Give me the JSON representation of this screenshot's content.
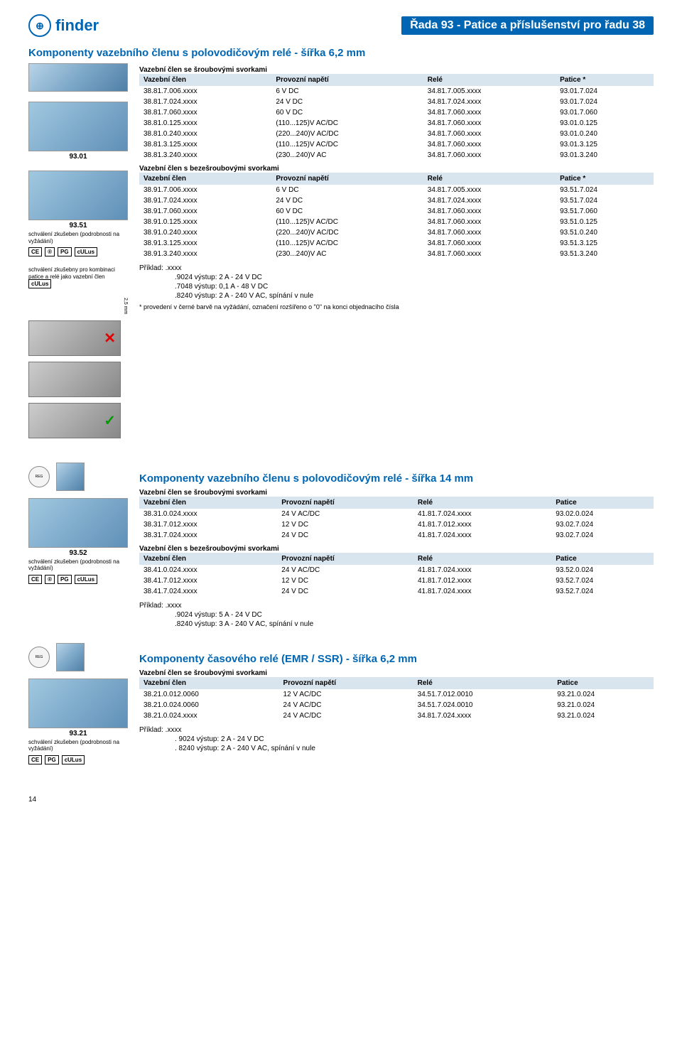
{
  "header": {
    "brand": "finder",
    "page_title": "Řada 93 - Patice a příslušenství pro řadu 38"
  },
  "section1": {
    "title": "Komponenty vazebního členu s polovodičovým relé - šířka 6,2 mm",
    "sub1": "Vazební člen se šroubovými svorkami",
    "cols": [
      "Vazební člen",
      "Provozní napětí",
      "Relé",
      "Patice *"
    ],
    "rows1": [
      [
        "38.81.7.006.xxxx",
        "6 V DC",
        "34.81.7.005.xxxx",
        "93.01.7.024"
      ],
      [
        "38.81.7.024.xxxx",
        "24 V DC",
        "34.81.7.024.xxxx",
        "93.01.7.024"
      ],
      [
        "38.81.7.060.xxxx",
        "60 V DC",
        "34.81.7.060.xxxx",
        "93.01.7.060"
      ],
      [
        "38.81.0.125.xxxx",
        "(110...125)V AC/DC",
        "34.81.7.060.xxxx",
        "93.01.0.125"
      ],
      [
        "38.81.0.240.xxxx",
        "(220...240)V AC/DC",
        "34.81.7.060.xxxx",
        "93.01.0.240"
      ],
      [
        "38.81.3.125.xxxx",
        "(110...125)V AC/DC",
        "34.81.7.060.xxxx",
        "93.01.3.125"
      ],
      [
        "38.81.3.240.xxxx",
        "(230...240)V AC",
        "34.81.7.060.xxxx",
        "93.01.3.240"
      ]
    ],
    "sub2": "Vazební člen s bezešroubovými svorkami",
    "rows2": [
      [
        "38.91.7.006.xxxx",
        "6 V DC",
        "34.81.7.005.xxxx",
        "93.51.7.024"
      ],
      [
        "38.91.7.024.xxxx",
        "24 V DC",
        "34.81.7.024.xxxx",
        "93.51.7.024"
      ],
      [
        "38.91.7.060.xxxx",
        "60 V DC",
        "34.81.7.060.xxxx",
        "93.51.7.060"
      ],
      [
        "38.91.0.125.xxxx",
        "(110...125)V AC/DC",
        "34.81.7.060.xxxx",
        "93.51.0.125"
      ],
      [
        "38.91.0.240.xxxx",
        "(220...240)V AC/DC",
        "34.81.7.060.xxxx",
        "93.51.0.240"
      ],
      [
        "38.91.3.125.xxxx",
        "(110...125)V AC/DC",
        "34.81.7.060.xxxx",
        "93.51.3.125"
      ],
      [
        "38.91.3.240.xxxx",
        "(230...240)V AC",
        "34.81.7.060.xxxx",
        "93.51.3.240"
      ]
    ],
    "example_label": "Příklad: .xxxx",
    "example_lines": [
      ".9024 výstup: 2    A -   24 V DC",
      ".7048 výstup: 0,1 A -   48 V DC",
      ".8240 výstup: 2    A - 240 V AC, spínání v nule"
    ],
    "footnote": "* provedení v černé barvě na vyžádání, označení rozšířeno o \"0\" na konci objednacího čísla",
    "side": {
      "cap1": "93.01",
      "cap2": "93.51",
      "note2": "schválení zkušeben\n(podrobnosti na vyžádání)",
      "note3": "schválení zkušebny\npro kombinaci patice\na relé jako vazební\nčlen",
      "dim": "2,5 mm"
    }
  },
  "section2": {
    "title": "Komponenty vazebního členu s polovodičovým relé - šířka 14 mm",
    "sub1": "Vazební člen se šroubovými svorkami",
    "cols": [
      "Vazební člen",
      "Provozní napětí",
      "Relé",
      "Patice"
    ],
    "rows1": [
      [
        "38.31.0.024.xxxx",
        "24 V AC/DC",
        "41.81.7.024.xxxx",
        "93.02.0.024"
      ],
      [
        "38.31.7.012.xxxx",
        "12 V DC",
        "41.81.7.012.xxxx",
        "93.02.7.024"
      ],
      [
        "38.31.7.024.xxxx",
        "24 V DC",
        "41.81.7.024.xxxx",
        "93.02.7.024"
      ]
    ],
    "sub2": "Vazební člen s bezešroubovými svorkami",
    "rows2": [
      [
        "38.41.0.024.xxxx",
        "24 V AC/DC",
        "41.81.7.024.xxxx",
        "93.52.0.024"
      ],
      [
        "38.41.7.012.xxxx",
        "12 V DC",
        "41.81.7.012.xxxx",
        "93.52.7.024"
      ],
      [
        "38.41.7.024.xxxx",
        "24 V DC",
        "41.81.7.024.xxxx",
        "93.52.7.024"
      ]
    ],
    "example_label": "Příklad: .xxxx",
    "example_lines": [
      ".9024 výstup: 5 A - 24 V DC",
      ".8240 výstup: 3 A - 240 V AC, spínání v nule"
    ],
    "side": {
      "cap": "93.52",
      "note": "schválení zkušeben\n(podrobnosti na vyžádání)"
    }
  },
  "section3": {
    "title": "Komponenty časového relé (EMR / SSR) - šířka 6,2 mm",
    "sub1": "Vazební člen se šroubovými svorkami",
    "cols": [
      "Vazební člen",
      "Provozní napětí",
      "Relé",
      "Patice"
    ],
    "rows1": [
      [
        "38.21.0.012.0060",
        "12 V AC/DC",
        "34.51.7.012.0010",
        "93.21.0.024"
      ],
      [
        "38.21.0.024.0060",
        "24 V AC/DC",
        "34.51.7.024.0010",
        "93.21.0.024"
      ],
      [
        "38.21.0.024.xxxx",
        "24 V AC/DC",
        "34.81.7.024.xxxx",
        "93.21.0.024"
      ]
    ],
    "example_label": "Příklad: .xxxx",
    "example_lines": [
      ". 9024 výstup: 2 A - 24 V DC",
      ". 8240 výstup: 2 A - 240 V AC, spínání v nule"
    ],
    "side": {
      "cap": "93.21",
      "note": "schválení zkušeben\n(podrobnosti na vyžádání)"
    }
  },
  "page_number": "14",
  "colors": {
    "brand": "#0066b3",
    "th_bg": "#d8e4ee"
  }
}
